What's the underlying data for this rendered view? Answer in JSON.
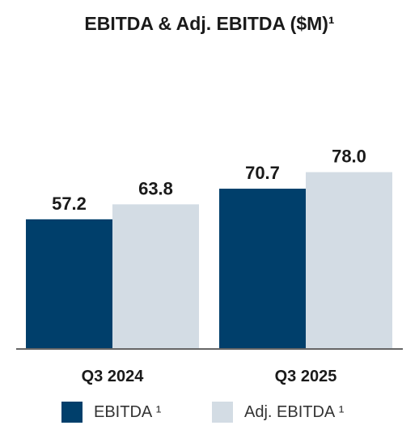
{
  "chart_data": {
    "type": "bar",
    "title": "EBITDA & Adj. EBITDA ($M)¹",
    "categories": [
      "Q3 2024",
      "Q3 2025"
    ],
    "series": [
      {
        "name": "EBITDA ¹",
        "values": [
          57.2,
          70.7
        ],
        "color": "#003f6b"
      },
      {
        "name": "Adj. EBITDA ¹",
        "values": [
          63.8,
          78.0
        ],
        "color": "#d3dce4"
      }
    ],
    "value_labels": [
      [
        "57.2",
        "70.7"
      ],
      [
        "63.8",
        "78.0"
      ]
    ],
    "ylim": [
      0,
      100
    ],
    "grid": false,
    "legend_position": "bottom",
    "axis_color": "#666666"
  }
}
